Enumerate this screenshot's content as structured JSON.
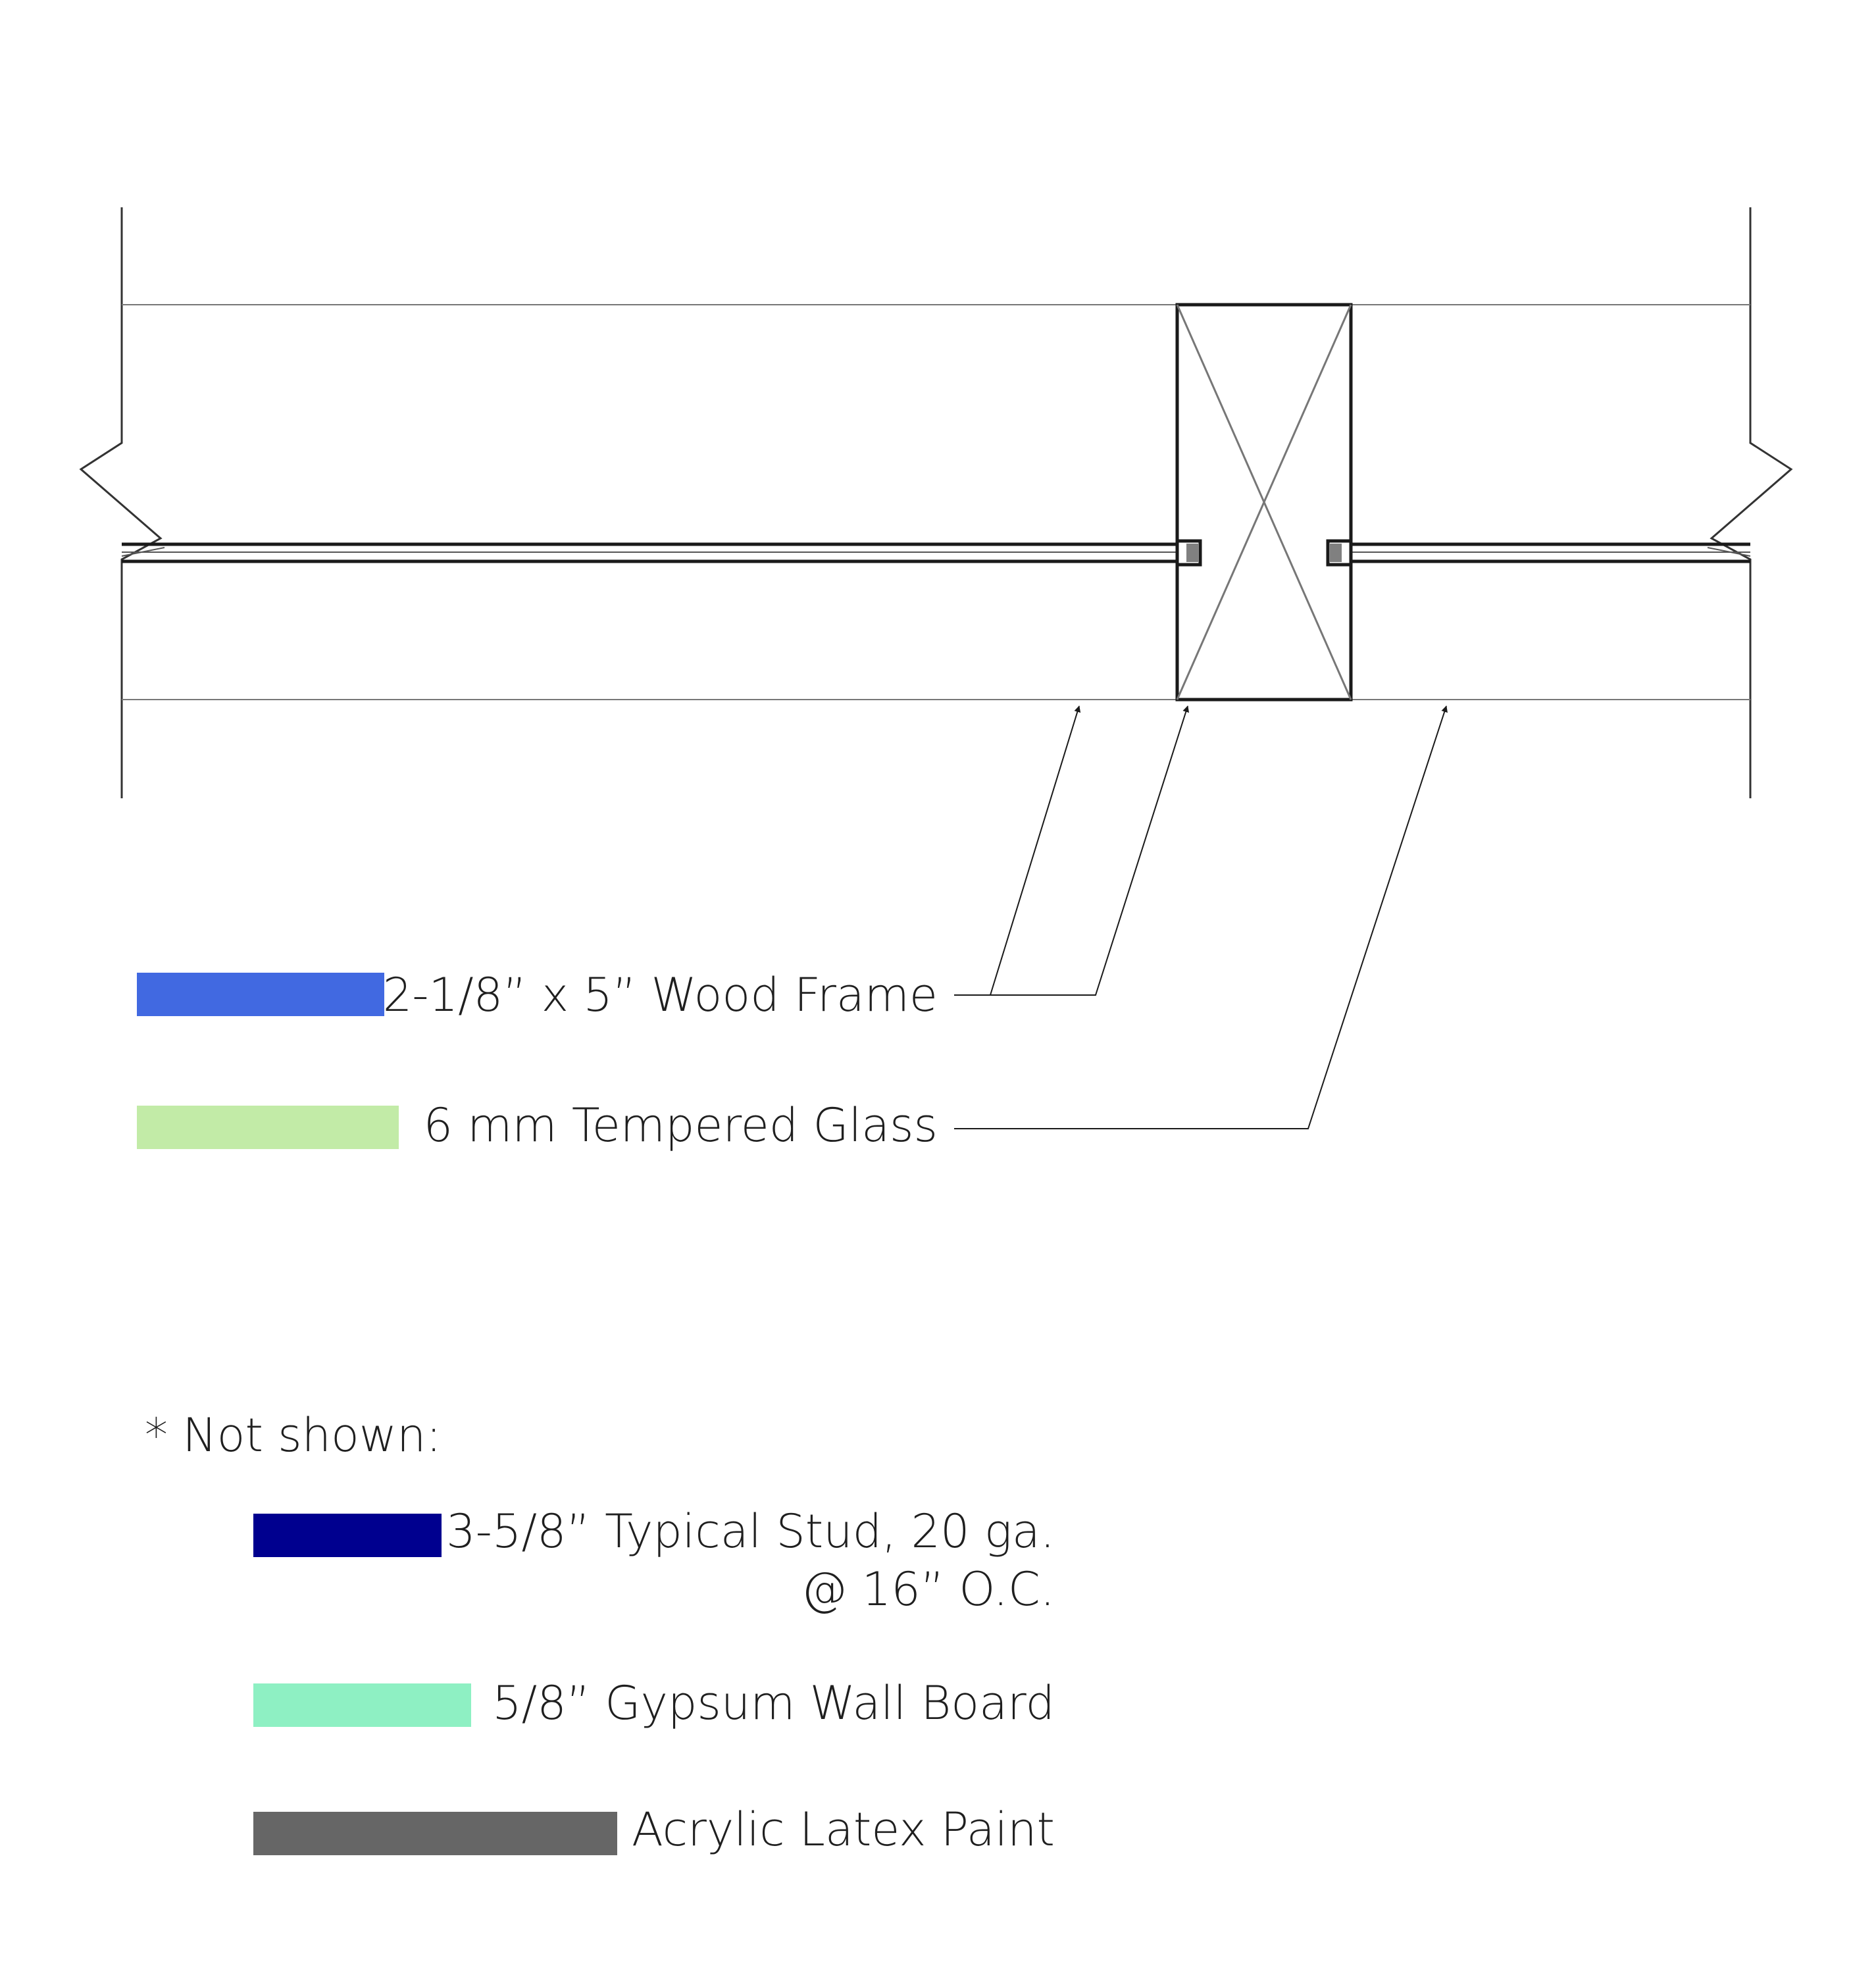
{
  "legend": {
    "wood_frame": {
      "label": "2-1/8” x 5” Wood Frame",
      "color": "#4169E1"
    },
    "glass": {
      "label": "6 mm Tempered Glass",
      "color": "#C2EBA7"
    }
  },
  "not_shown": {
    "heading": "* Not shown:",
    "stud": {
      "line1": "3-5/8” Typical Stud, 20 ga.",
      "line2": "@ 16” O.C.",
      "color": "#00008F"
    },
    "gypsum": {
      "label": "5/8” Gypsum Wall Board",
      "color": "#8EF0C3"
    },
    "paint": {
      "label": "Acrylic Latex Paint",
      "color": "#666666"
    }
  },
  "colors": {
    "line": "#1a1a1a",
    "thin_line": "#777777",
    "glass_stop": "#808080"
  }
}
